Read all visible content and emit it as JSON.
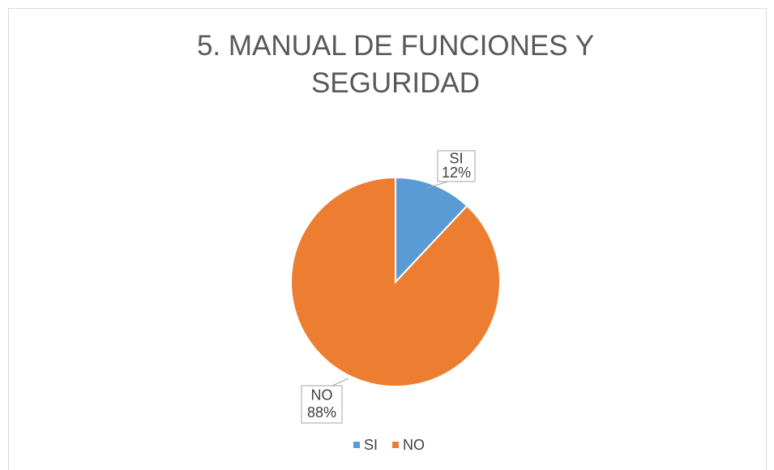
{
  "chart_data": {
    "type": "pie",
    "title": "5. MANUAL DE FUNCIONES Y SEGURIDAD",
    "categories": [
      "SI",
      "NO"
    ],
    "values": [
      12,
      88
    ],
    "value_labels": [
      "12%",
      "88%"
    ],
    "colors": [
      "#5b9bd5",
      "#ed7d31"
    ],
    "legend": "bottom"
  }
}
